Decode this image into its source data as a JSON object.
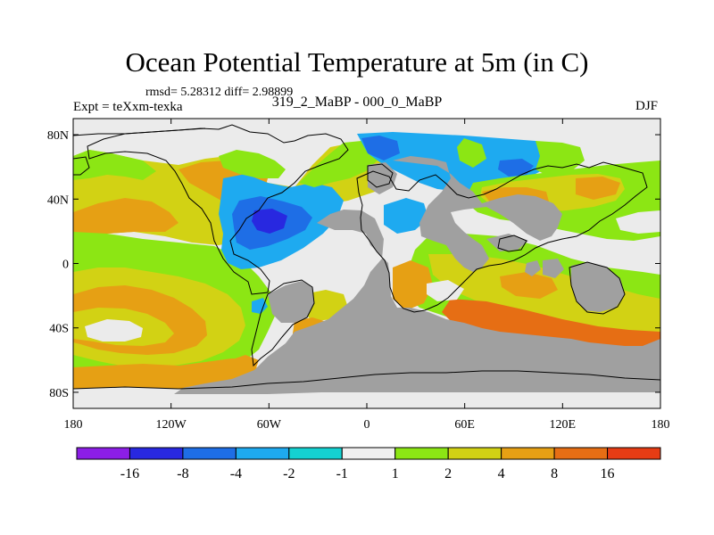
{
  "title": "Ocean Potential Temperature at 5m (in C)",
  "stats": "rmsd= 5.28312 diff= 2.98899",
  "experiment": "Expt = teXxm-texka",
  "subtitle": "319_2_MaBP - 000_0_MaBP",
  "season": "DJF",
  "map": {
    "projection": "cylindrical-equidistant",
    "lon_range": [
      -180,
      180
    ],
    "lat_range": [
      -90,
      90
    ],
    "lat_ticks": [
      {
        "value": 80,
        "label": "80N"
      },
      {
        "value": 40,
        "label": "40N"
      },
      {
        "value": 0,
        "label": "0"
      },
      {
        "value": -40,
        "label": "40S"
      },
      {
        "value": -80,
        "label": "80S"
      }
    ],
    "lon_ticks": [
      {
        "value": -180,
        "label": "180"
      },
      {
        "value": -120,
        "label": "120W"
      },
      {
        "value": -60,
        "label": "60W"
      },
      {
        "value": 0,
        "label": "0"
      },
      {
        "value": 60,
        "label": "60E"
      },
      {
        "value": 120,
        "label": "120E"
      },
      {
        "value": 180,
        "label": "180"
      }
    ]
  },
  "colorbar": {
    "colors": [
      "#8c1ee6",
      "#2828e0",
      "#1e6ee6",
      "#1eaaf0",
      "#14d2d2",
      "#f0f0f0",
      "#8ce614",
      "#d2d214",
      "#e6a014",
      "#e66e14",
      "#e63c14"
    ],
    "labels": [
      "-16",
      "-8",
      "-4",
      "-2",
      "-1",
      "1",
      "2",
      "4",
      "8",
      "16"
    ]
  },
  "colors": {
    "land": "#a0a0a0",
    "neutral": "#ebebeb",
    "coast": "#000000"
  }
}
